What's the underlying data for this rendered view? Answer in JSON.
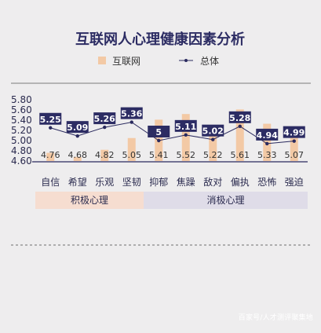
{
  "chart_data": {
    "type": "bar",
    "title": "互联网人心理健康因素分析",
    "categories": [
      "自信",
      "希望",
      "乐观",
      "坚韧",
      "抑郁",
      "焦躁",
      "敌对",
      "偏执",
      "恐怖",
      "强迫"
    ],
    "series": [
      {
        "name": "互联网",
        "type": "bar",
        "values": [
          4.76,
          4.68,
          4.82,
          5.05,
          5.41,
          5.52,
          5.22,
          5.61,
          5.33,
          5.07
        ]
      },
      {
        "name": "总体",
        "type": "line",
        "values": [
          5.25,
          5.09,
          5.26,
          5.36,
          5.0,
          5.11,
          5.02,
          5.28,
          4.94,
          4.99
        ]
      }
    ],
    "yticks": [
      "4.60",
      "4.80",
      "5.00",
      "5.20",
      "5.40",
      "5.60",
      "5.80"
    ],
    "ylim": [
      4.6,
      5.8
    ],
    "groups": [
      {
        "label": "积极心理",
        "count": 4
      },
      {
        "label": "消极心理",
        "count": 6
      }
    ]
  },
  "colors": {
    "background": "#eeedee",
    "bar": "#f3c9a5",
    "line": "#2a2a5e",
    "label_box": "#2c2c63",
    "title": "#2c2c63",
    "positive_group": "#f6ddd0",
    "negative_group": "#dfdce8",
    "axis": "#2a2a5e"
  },
  "footer": "百家号/人才测评聚集地"
}
